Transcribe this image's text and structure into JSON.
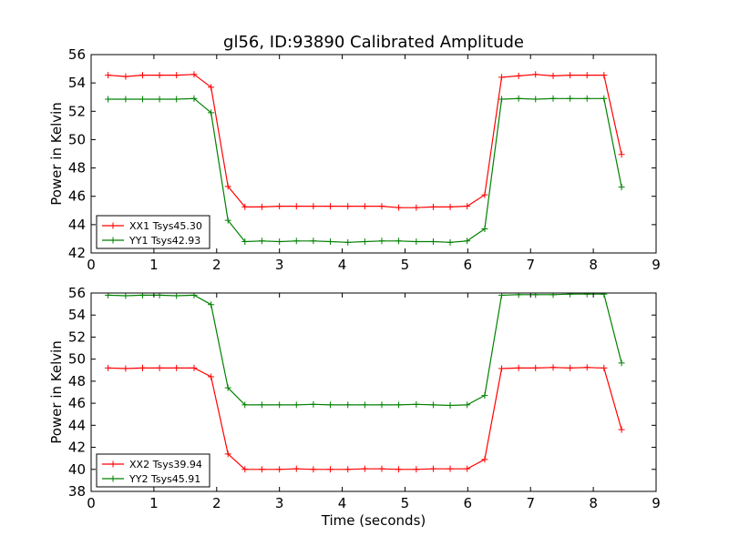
{
  "title": "gl56, ID:93890 Calibrated Amplitude",
  "colors": {
    "xx": "#ff0000",
    "yy": "#008000",
    "frame": "#000000"
  },
  "chart_data": [
    {
      "type": "line",
      "title": "gl56, ID:93890 Calibrated Amplitude",
      "xlabel": "",
      "ylabel": "Power in Kelvin",
      "xlim": [
        0,
        9
      ],
      "ylim": [
        42,
        56
      ],
      "xticks": [
        0,
        1,
        2,
        3,
        4,
        5,
        6,
        7,
        8,
        9
      ],
      "yticks": [
        42,
        44,
        46,
        48,
        50,
        52,
        54,
        56
      ],
      "grid": false,
      "legend_position": "lower-left",
      "x": [
        0.27,
        0.55,
        0.82,
        1.09,
        1.36,
        1.64,
        1.91,
        2.18,
        2.45,
        2.72,
        3.0,
        3.27,
        3.54,
        3.81,
        4.09,
        4.36,
        4.63,
        4.9,
        5.18,
        5.45,
        5.72,
        5.99,
        6.27,
        6.54,
        6.81,
        7.08,
        7.36,
        7.63,
        7.9,
        8.17,
        8.45
      ],
      "series": [
        {
          "name": "XX1 Tsys45.30",
          "color": "#ff0000",
          "values": [
            54.55,
            54.45,
            54.55,
            54.55,
            54.55,
            54.6,
            53.7,
            46.7,
            45.25,
            45.25,
            45.3,
            45.3,
            45.3,
            45.3,
            45.3,
            45.3,
            45.3,
            45.2,
            45.2,
            45.25,
            45.25,
            45.3,
            46.1,
            54.4,
            54.5,
            54.6,
            54.5,
            54.55,
            54.55,
            54.55,
            48.95
          ]
        },
        {
          "name": "YY1 Tsys42.93",
          "color": "#008000",
          "values": [
            52.85,
            52.85,
            52.85,
            52.85,
            52.85,
            52.9,
            51.9,
            44.3,
            42.8,
            42.85,
            42.8,
            42.85,
            42.85,
            42.8,
            42.75,
            42.8,
            42.85,
            42.85,
            42.8,
            42.8,
            42.75,
            42.85,
            43.7,
            52.85,
            52.9,
            52.85,
            52.9,
            52.9,
            52.9,
            52.9,
            46.65
          ]
        }
      ]
    },
    {
      "type": "line",
      "title": "",
      "xlabel": "Time (seconds)",
      "ylabel": "Power in Kelvin",
      "xlim": [
        0,
        9
      ],
      "ylim": [
        38,
        56
      ],
      "xticks": [
        0,
        1,
        2,
        3,
        4,
        5,
        6,
        7,
        8,
        9
      ],
      "yticks": [
        38,
        40,
        42,
        44,
        46,
        48,
        50,
        52,
        54,
        56
      ],
      "grid": false,
      "legend_position": "lower-left",
      "x": [
        0.27,
        0.55,
        0.82,
        1.09,
        1.36,
        1.64,
        1.91,
        2.18,
        2.45,
        2.72,
        3.0,
        3.27,
        3.54,
        3.81,
        4.09,
        4.36,
        4.63,
        4.9,
        5.18,
        5.45,
        5.72,
        5.99,
        6.27,
        6.54,
        6.81,
        7.08,
        7.36,
        7.63,
        7.9,
        8.17,
        8.45
      ],
      "series": [
        {
          "name": "XX2 Tsys39.94",
          "color": "#ff0000",
          "values": [
            49.2,
            49.15,
            49.2,
            49.2,
            49.2,
            49.2,
            48.4,
            41.4,
            40.0,
            40.0,
            40.0,
            40.05,
            40.0,
            40.0,
            40.0,
            40.05,
            40.05,
            40.0,
            40.0,
            40.05,
            40.05,
            40.05,
            40.9,
            49.15,
            49.2,
            49.2,
            49.25,
            49.2,
            49.25,
            49.2,
            43.6
          ]
        },
        {
          "name": "YY2 Tsys45.91",
          "color": "#008000",
          "values": [
            55.8,
            55.75,
            55.8,
            55.8,
            55.75,
            55.8,
            54.95,
            47.4,
            45.85,
            45.85,
            45.85,
            45.85,
            45.9,
            45.85,
            45.85,
            45.85,
            45.85,
            45.85,
            45.9,
            45.85,
            45.8,
            45.85,
            46.7,
            55.8,
            55.85,
            55.85,
            55.85,
            55.9,
            55.9,
            55.9,
            49.65
          ]
        }
      ]
    }
  ]
}
